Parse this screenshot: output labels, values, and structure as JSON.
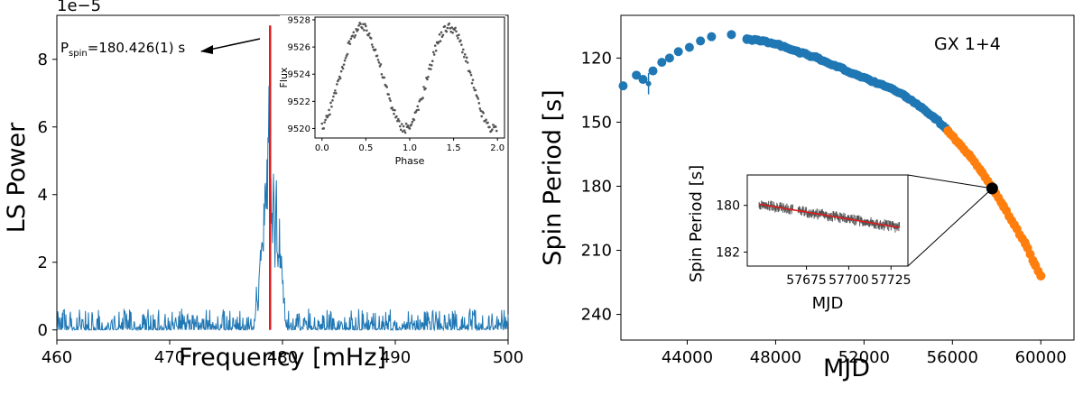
{
  "chart_data": [
    {
      "type": "line",
      "xlabel": "Frequency [mHz]",
      "ylabel": "LS Power",
      "y_offset_text": "1e−5",
      "xlim": [
        460,
        500
      ],
      "ylim": [
        -0.3,
        9.3
      ],
      "y_scale": "1e-5",
      "xticks": [
        "460",
        "470",
        "480",
        "490",
        "500"
      ],
      "yticks": [
        "0",
        "2",
        "4",
        "6",
        "8"
      ],
      "series": [
        {
          "color": "#1f77b4",
          "noise_level": 0.35,
          "peaks": [
            {
              "x": 477.7,
              "y": 1.3
            },
            {
              "x": 478.0,
              "y": 2.0
            },
            {
              "x": 478.2,
              "y": 2.8
            },
            {
              "x": 478.4,
              "y": 3.8
            },
            {
              "x": 478.6,
              "y": 5.2
            },
            {
              "x": 478.8,
              "y": 6.8
            },
            {
              "x": 478.95,
              "y": 5.0
            },
            {
              "x": 479.2,
              "y": 4.8
            },
            {
              "x": 479.45,
              "y": 4.1
            },
            {
              "x": 479.7,
              "y": 3.3
            },
            {
              "x": 479.9,
              "y": 2.1
            },
            {
              "x": 480.1,
              "y": 0.9
            }
          ]
        }
      ],
      "vline": {
        "x": 478.9,
        "color": "#e31a1c",
        "ymax": 9.0
      },
      "annotation": {
        "text_main": "P",
        "text_sub": "spin",
        "text_rest": "=180.426(1) s"
      },
      "inset": {
        "type": "scatter",
        "xlabel": "Phase",
        "ylabel": "Flux",
        "xlim": [
          -0.08,
          2.08
        ],
        "ylim": [
          9519.3,
          9528.2
        ],
        "xticks": [
          "0.0",
          "0.5",
          "1.0",
          "1.5",
          "2.0"
        ],
        "yticks": [
          "9520",
          "9522",
          "9524",
          "9526",
          "9528"
        ],
        "profile": {
          "min": 9520.0,
          "max": 9527.5,
          "peak_phase": 0.45,
          "min_phase": 0.97
        },
        "color": "#555555"
      }
    },
    {
      "type": "scatter",
      "xlabel": "MJD",
      "ylabel": "Spin Period [s]",
      "xlim": [
        41000,
        61500
      ],
      "ylim": [
        252,
        100
      ],
      "y_inverted": true,
      "xticks": [
        "44000",
        "48000",
        "52000",
        "56000",
        "60000"
      ],
      "yticks": [
        "120",
        "150",
        "180",
        "210",
        "240"
      ],
      "annotation": "GX 1+4",
      "series": [
        {
          "color": "#1f77b4",
          "points": [
            [
              41100,
              133
            ],
            [
              41700,
              128
            ],
            [
              42000,
              130
            ],
            [
              42450,
              126
            ],
            [
              42850,
              122
            ],
            [
              43200,
              120
            ],
            [
              43600,
              117
            ],
            [
              44100,
              115
            ],
            [
              44600,
              112
            ],
            [
              45100,
              110
            ],
            [
              46000,
              109
            ],
            [
              46700,
              111
            ],
            [
              47400,
              112
            ],
            [
              48200,
              114
            ],
            [
              49000,
              117
            ],
            [
              49900,
              120
            ],
            [
              50800,
              124
            ],
            [
              51700,
              128
            ],
            [
              52400,
              131
            ],
            [
              53200,
              134
            ],
            [
              53900,
              138
            ],
            [
              54600,
              143
            ],
            [
              55200,
              148
            ],
            [
              55700,
              153
            ]
          ],
          "error_point": {
            "x": 42250,
            "y": 132,
            "err": 5
          }
        },
        {
          "color": "#ff7f0e",
          "points": [
            [
              55800,
              154
            ],
            [
              56300,
              160
            ],
            [
              56800,
              166
            ],
            [
              57300,
              173
            ],
            [
              57800,
              181
            ],
            [
              58300,
              189
            ],
            [
              58800,
              198
            ],
            [
              59300,
              207
            ],
            [
              59700,
              216
            ],
            [
              60000,
              222
            ]
          ]
        }
      ],
      "highlight": {
        "x": 57800,
        "y": 181,
        "color": "#000000"
      },
      "inset": {
        "type": "scatter",
        "xlabel": "MJD",
        "ylabel": "Spin Period [s]",
        "xlim": [
          57640,
          57735
        ],
        "ylim": [
          182.6,
          178.7
        ],
        "y_inverted": true,
        "xticks": [
          "57675",
          "57700",
          "57725"
        ],
        "yticks": [
          "180",
          "182"
        ],
        "fit": {
          "x": [
            57647,
            57730
          ],
          "y": [
            179.95,
            180.95
          ],
          "color": "#e31a1c"
        },
        "color": "#555555"
      }
    }
  ]
}
